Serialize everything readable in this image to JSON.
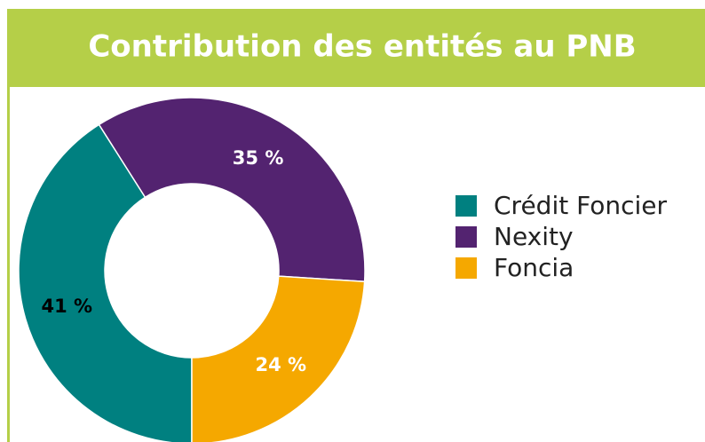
{
  "chart_data": {
    "type": "donut",
    "title": "Contribution des entités au PNB",
    "categories": [
      "Crédit Foncier",
      "Nexity",
      "Foncia"
    ],
    "values": [
      41,
      35,
      24
    ],
    "value_labels": [
      "41 %",
      "35 %",
      "24 %"
    ],
    "colors": [
      "#008080",
      "#532370",
      "#f5a800"
    ],
    "label_colors": [
      "#000000",
      "#ffffff",
      "#ffffff"
    ],
    "legend": "right"
  }
}
